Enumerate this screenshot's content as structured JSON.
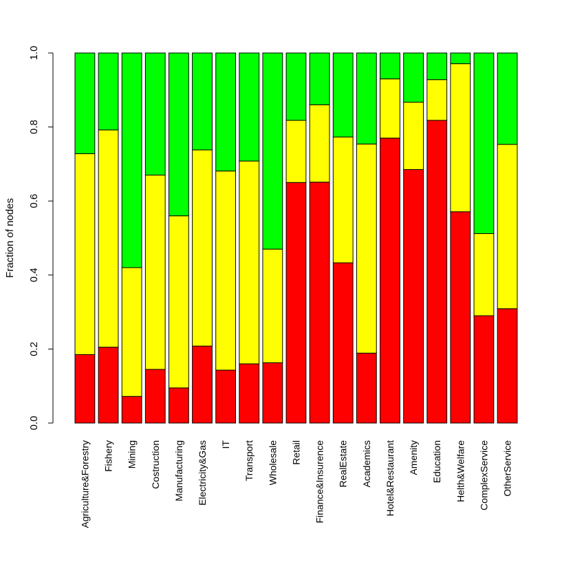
{
  "chart_data": {
    "type": "bar",
    "stacked": true,
    "title": "",
    "xlabel": "",
    "ylabel": "Fraction of nodes",
    "ylim": [
      0,
      1
    ],
    "yticks": [
      "0.0",
      "0.2",
      "0.4",
      "0.6",
      "0.8",
      "1.0"
    ],
    "grid": false,
    "categories": [
      "Agriculture&Forestry",
      "Fishery",
      "Mining",
      "Costruction",
      "Manufacturing",
      "Electricity&Gas",
      "IT",
      "Transport",
      "Wholesale",
      "Retail",
      "Finance&Insurence",
      "RealEstate",
      "Academics",
      "Hotel&Restaurant",
      "Amenity",
      "Education",
      "Helth&Welfare",
      "ComplexService",
      "OtherService"
    ],
    "series": [
      {
        "name": "red",
        "color": "#ff0000",
        "values": [
          0.185,
          0.205,
          0.072,
          0.145,
          0.095,
          0.208,
          0.143,
          0.16,
          0.163,
          0.65,
          0.651,
          0.433,
          0.189,
          0.77,
          0.685,
          0.818,
          0.571,
          0.29,
          0.309
        ]
      },
      {
        "name": "yellow",
        "color": "#ffff00",
        "values": [
          0.543,
          0.587,
          0.348,
          0.525,
          0.465,
          0.53,
          0.538,
          0.548,
          0.307,
          0.168,
          0.209,
          0.34,
          0.565,
          0.16,
          0.182,
          0.11,
          0.4,
          0.222,
          0.444
        ]
      },
      {
        "name": "green",
        "color": "#00ff00",
        "values": [
          0.272,
          0.208,
          0.58,
          0.33,
          0.44,
          0.262,
          0.319,
          0.292,
          0.53,
          0.182,
          0.14,
          0.227,
          0.246,
          0.07,
          0.133,
          0.072,
          0.029,
          0.488,
          0.247
        ]
      }
    ]
  }
}
